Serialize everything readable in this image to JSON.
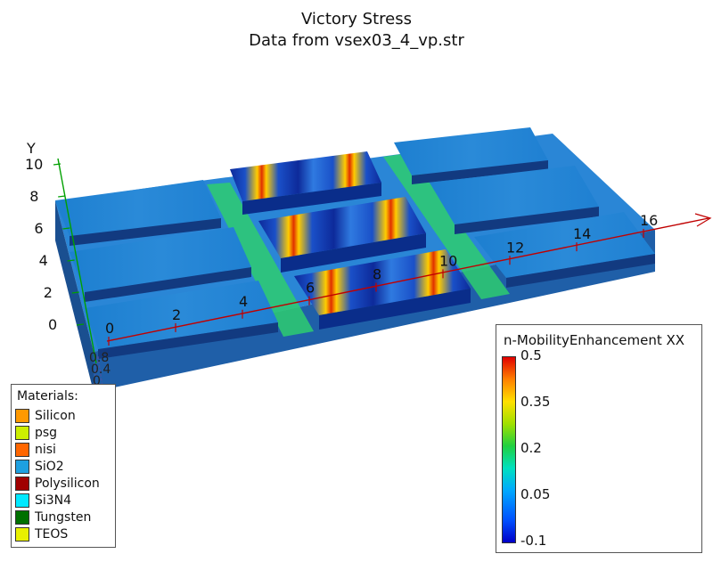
{
  "title": "Victory Stress",
  "subtitle": "Data from vsex03_4_vp.str",
  "axes": {
    "y_label": "Y",
    "y_ticks": [
      "10",
      "8",
      "6",
      "4",
      "2",
      "0"
    ],
    "x_ticks": [
      "0",
      "2",
      "4",
      "6",
      "8",
      "10",
      "12",
      "14",
      "16"
    ],
    "z_ticks": [
      "0.8",
      "0.4",
      "0"
    ],
    "colors": {
      "x": "#c00000",
      "y": "#00a000",
      "z": "#4040a0"
    }
  },
  "materials": {
    "title": "Materials:",
    "items": [
      {
        "name": "Silicon",
        "color": "#ff9900"
      },
      {
        "name": "psg",
        "color": "#ccee00"
      },
      {
        "name": "nisi",
        "color": "#ff6600"
      },
      {
        "name": "SiO2",
        "color": "#1ea0e0"
      },
      {
        "name": "Polysilicon",
        "color": "#a00000"
      },
      {
        "name": "Si3N4",
        "color": "#00e8ff"
      },
      {
        "name": "Tungsten",
        "color": "#007000"
      },
      {
        "name": "TEOS",
        "color": "#e8f000"
      }
    ]
  },
  "colorbar": {
    "title": "n-MobilityEnhancement XX",
    "ticks": [
      "0.5",
      "0.35",
      "0.2",
      "0.05",
      "-0.1"
    ]
  }
}
